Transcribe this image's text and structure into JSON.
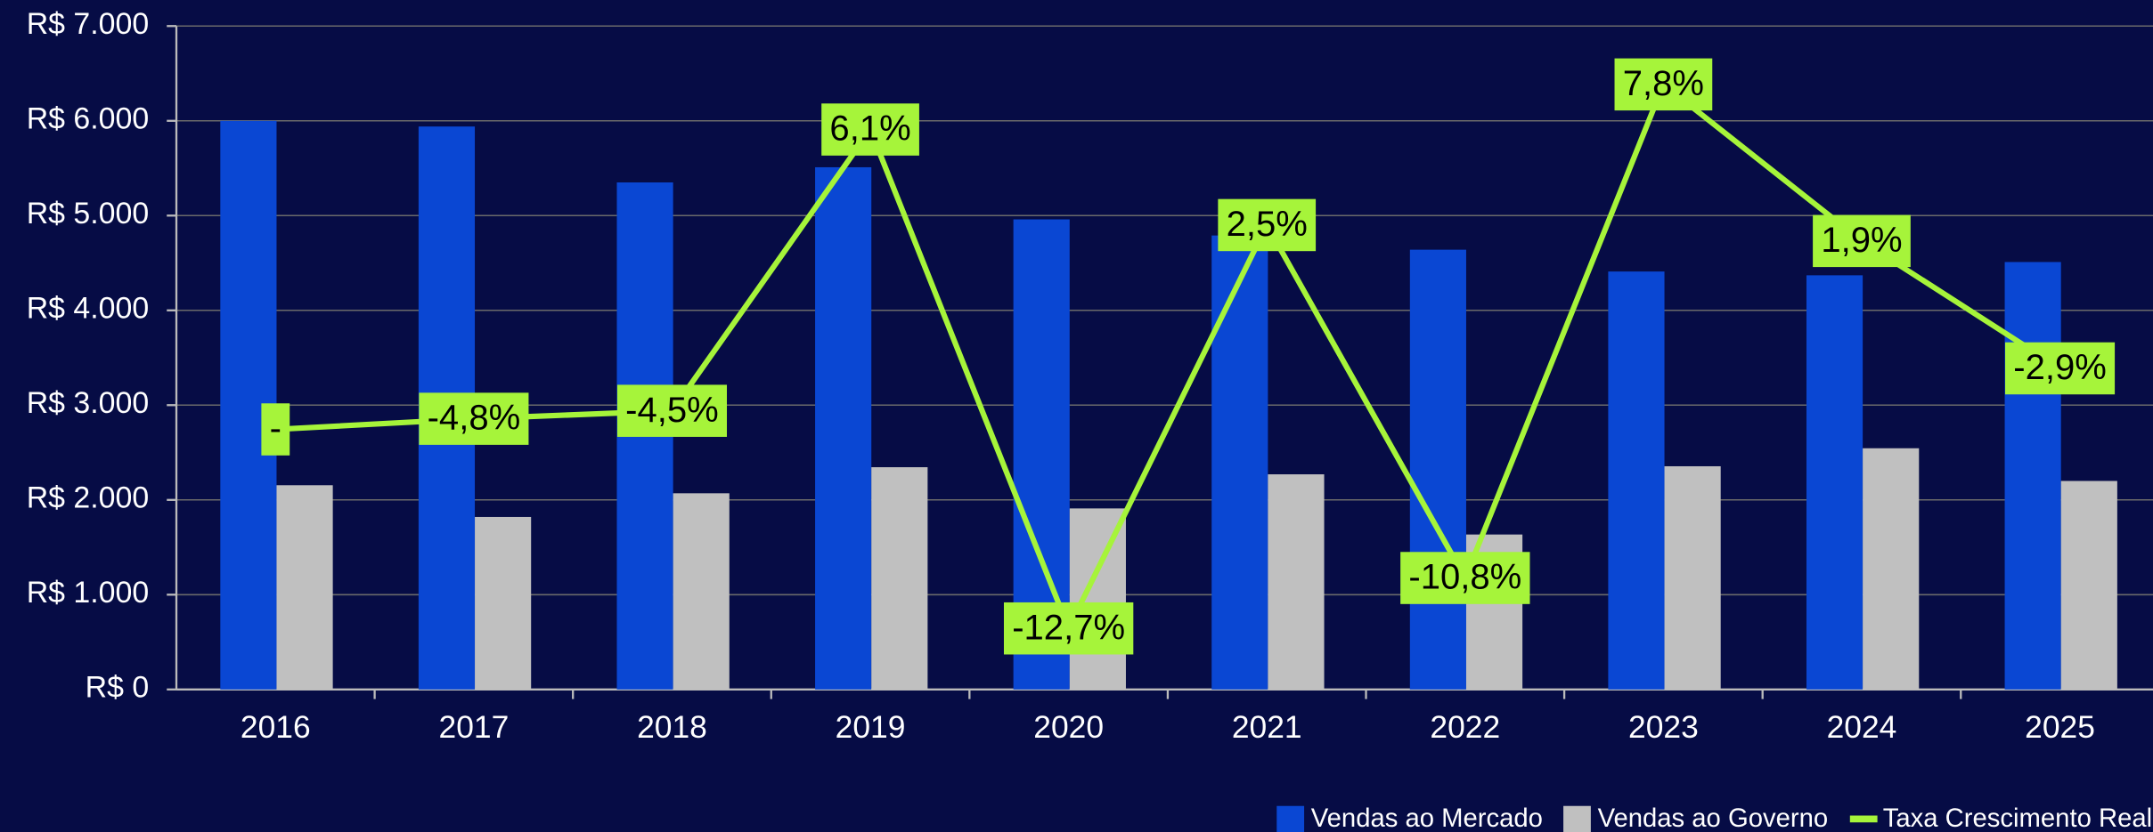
{
  "chart_data": {
    "type": "bar",
    "categories": [
      "2016",
      "2017",
      "2018",
      "2019",
      "2020",
      "2021",
      "2022",
      "2023",
      "2024",
      "2025"
    ],
    "series": [
      {
        "name": "Vendas ao Mercado",
        "color": "#0a47d3",
        "values": [
          6000,
          5940,
          5350,
          5510,
          4960,
          4790,
          4640,
          4410,
          4370,
          4510
        ]
      },
      {
        "name": "Vendas ao Governo",
        "color": "#c0c0c0",
        "values": [
          2155,
          1820,
          2070,
          2345,
          1910,
          2270,
          1635,
          2355,
          2545,
          2200
        ]
      },
      {
        "name": "Taxa Crescimento Real",
        "color": "#a6f43a",
        "type": "line",
        "axis": "y2",
        "values": [
          -5.2,
          -4.8,
          -4.5,
          6.1,
          -12.7,
          2.5,
          -10.8,
          7.8,
          1.9,
          -2.9
        ],
        "value_labels": [
          "-",
          "-4,8%",
          "-4,5%",
          "6,1%",
          "-12,7%",
          "2,5%",
          "-10,8%",
          "7,8%",
          "1,9%",
          "-2,9%"
        ]
      }
    ],
    "ylim": [
      0,
      7000
    ],
    "yticks": [
      {
        "value": 0,
        "label": "R$ 0"
      },
      {
        "value": 1000,
        "label": "R$ 1.000"
      },
      {
        "value": 2000,
        "label": "R$ 2.000"
      },
      {
        "value": 3000,
        "label": "R$ 3.000"
      },
      {
        "value": 4000,
        "label": "R$ 4.000"
      },
      {
        "value": 5000,
        "label": "R$ 5.000"
      },
      {
        "value": 6000,
        "label": "R$ 6.000"
      },
      {
        "value": 7000,
        "label": "R$ 7.000"
      }
    ],
    "y2lim": [
      -15,
      10
    ],
    "grid": true,
    "legend": "bottom-right"
  }
}
